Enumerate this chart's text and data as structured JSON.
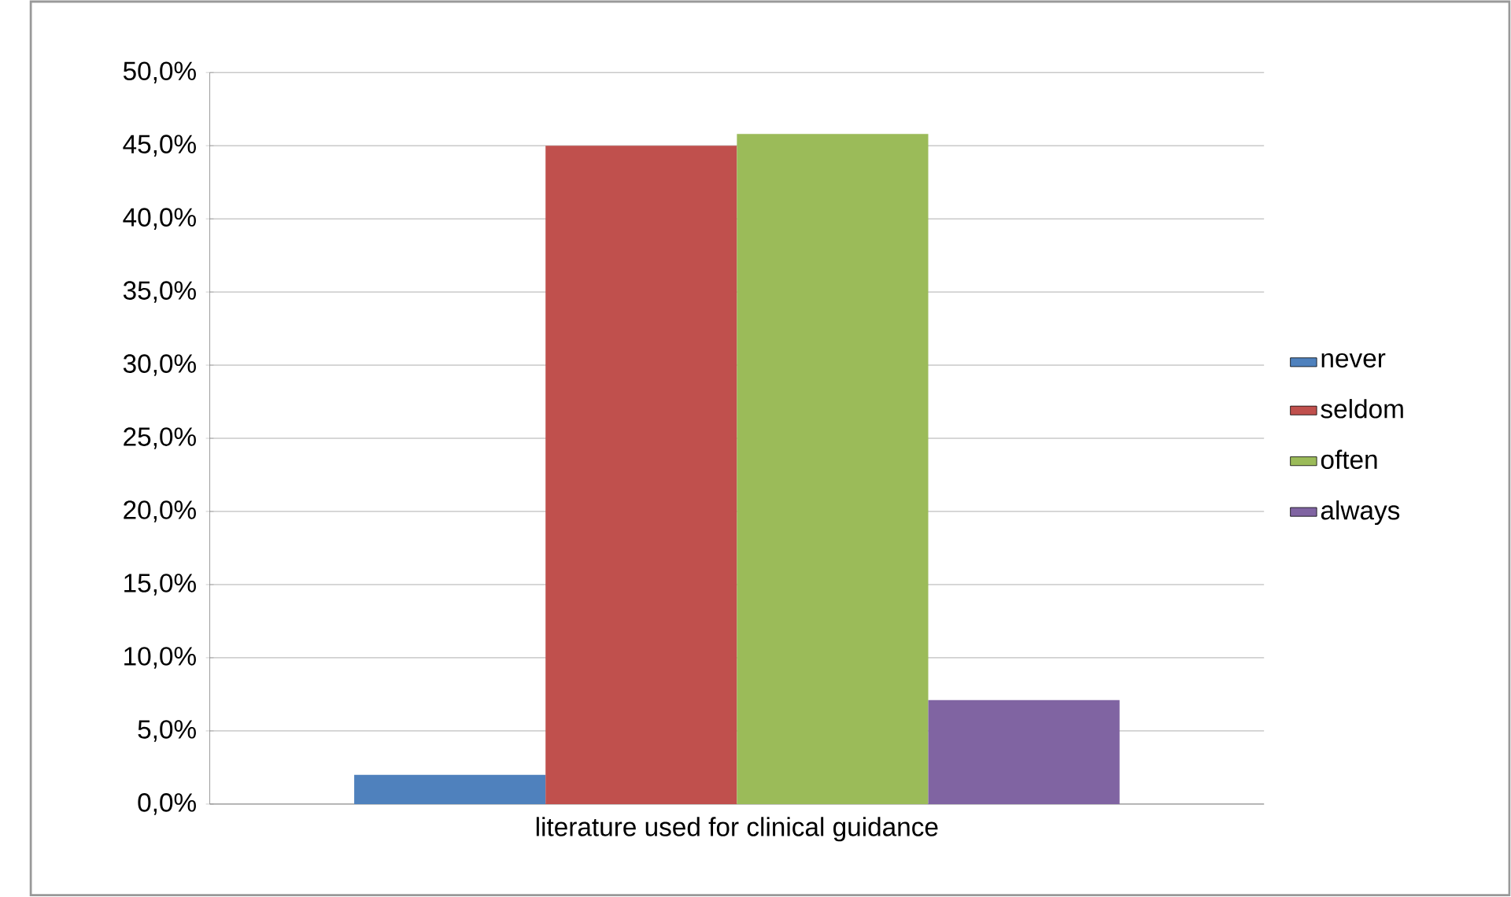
{
  "chart_data": {
    "type": "bar",
    "categories": [
      "literature used for clinical guidance"
    ],
    "series": [
      {
        "name": "never",
        "color": "#4f81bd",
        "values": [
          2.0
        ]
      },
      {
        "name": "seldom",
        "color": "#c0504d",
        "values": [
          45.0
        ]
      },
      {
        "name": "often",
        "color": "#9bbb59",
        "values": [
          45.8
        ]
      },
      {
        "name": "always",
        "color": "#8064a2",
        "values": [
          7.1
        ]
      }
    ],
    "ylim": [
      0,
      50
    ],
    "yticks": [
      {
        "value": 0,
        "label": "0,0%"
      },
      {
        "value": 5,
        "label": "5,0%"
      },
      {
        "value": 10,
        "label": "10,0%"
      },
      {
        "value": 15,
        "label": "15,0%"
      },
      {
        "value": 20,
        "label": "20,0%"
      },
      {
        "value": 25,
        "label": "25,0%"
      },
      {
        "value": 30,
        "label": "30,0%"
      },
      {
        "value": 35,
        "label": "35,0%"
      },
      {
        "value": 40,
        "label": "40,0%"
      },
      {
        "value": 45,
        "label": "45,0%"
      },
      {
        "value": 50,
        "label": "50,0%"
      }
    ],
    "grid": "y",
    "legend": "right"
  }
}
